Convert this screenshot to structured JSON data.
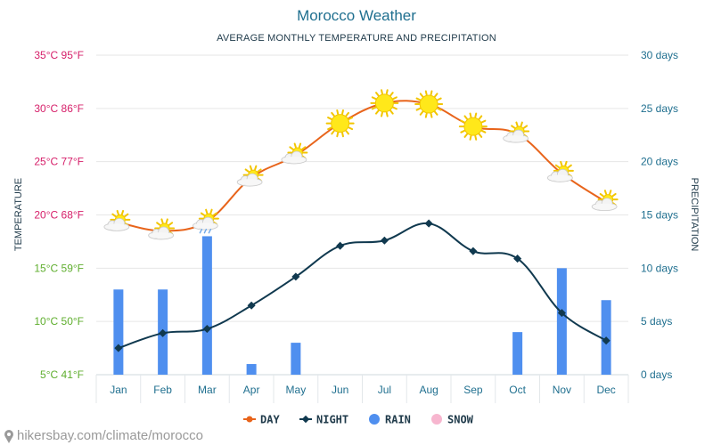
{
  "title": "Morocco Weather",
  "subtitle": "AVERAGE MONTHLY TEMPERATURE AND PRECIPITATION",
  "footer": "hikersbay.com/climate/morocco",
  "colors": {
    "day": "#e8641b",
    "night": "#10394f",
    "rain": "#4f8fef",
    "snow": "#f7b6cf"
  },
  "chart_data": {
    "type": "line",
    "categories": [
      "Jan",
      "Feb",
      "Mar",
      "Apr",
      "May",
      "Jun",
      "Jul",
      "Aug",
      "Sep",
      "Oct",
      "Nov",
      "Dec"
    ],
    "series": [
      {
        "name": "DAY",
        "axis": "temperature",
        "unit": "°C",
        "values": [
          19.3,
          18.5,
          19.4,
          23.5,
          25.6,
          28.6,
          30.5,
          30.4,
          28.3,
          27.6,
          23.9,
          21.2
        ]
      },
      {
        "name": "NIGHT",
        "axis": "temperature",
        "unit": "°C",
        "values": [
          7.5,
          8.9,
          9.3,
          11.5,
          14.2,
          17.1,
          17.6,
          19.2,
          16.6,
          15.9,
          10.8,
          8.2
        ]
      },
      {
        "name": "RAIN",
        "axis": "precipitation",
        "unit": "days",
        "type": "bar",
        "values": [
          8,
          8,
          13,
          1,
          3,
          0,
          0,
          0,
          0,
          4,
          10,
          7
        ]
      },
      {
        "name": "SNOW",
        "axis": "precipitation",
        "unit": "days",
        "type": "bar",
        "values": [
          0,
          0,
          0,
          0,
          0,
          0,
          0,
          0,
          0,
          0,
          0,
          0
        ]
      }
    ],
    "weather_icons": [
      "sun-cloud",
      "sun-cloud",
      "sun-cloud-rain",
      "sun-cloud",
      "sun-cloud",
      "sun",
      "sun",
      "sun",
      "sun",
      "sun-cloud",
      "sun-cloud",
      "sun-cloud"
    ],
    "y_left": {
      "label": "TEMPERATURE",
      "range": [
        5,
        35
      ],
      "ticks": [
        {
          "value": 35,
          "label": "35°C 95°F",
          "color": "#d6206a"
        },
        {
          "value": 30,
          "label": "30°C 86°F",
          "color": "#d6206a"
        },
        {
          "value": 25,
          "label": "25°C 77°F",
          "color": "#d6206a"
        },
        {
          "value": 20,
          "label": "20°C 68°F",
          "color": "#d6206a"
        },
        {
          "value": 15,
          "label": "15°C 59°F",
          "color": "#5fae2e"
        },
        {
          "value": 10,
          "label": "10°C 50°F",
          "color": "#5fae2e"
        },
        {
          "value": 5,
          "label": "5°C 41°F",
          "color": "#5fae2e"
        }
      ]
    },
    "y_right": {
      "label": "PRECIPITATION",
      "range": [
        0,
        30
      ],
      "ticks": [
        {
          "value": 30,
          "label": "30 days"
        },
        {
          "value": 25,
          "label": "25 days"
        },
        {
          "value": 20,
          "label": "20 days"
        },
        {
          "value": 15,
          "label": "15 days"
        },
        {
          "value": 10,
          "label": "10 days"
        },
        {
          "value": 5,
          "label": "5 days"
        },
        {
          "value": 0,
          "label": "0 days"
        }
      ]
    },
    "grid": true,
    "legend": {
      "position": "bottom",
      "entries": [
        "DAY",
        "NIGHT",
        "RAIN",
        "SNOW"
      ]
    }
  }
}
